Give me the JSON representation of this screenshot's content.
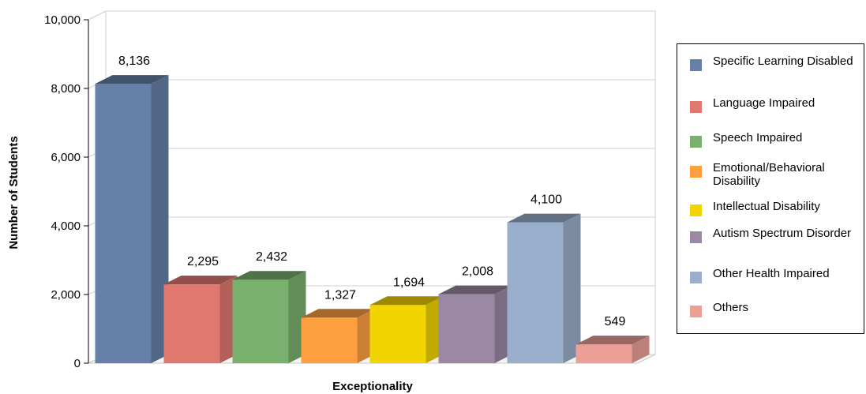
{
  "chart_data": {
    "type": "bar",
    "title": "",
    "xlabel": "Exceptionality",
    "ylabel": "Number of Students",
    "ylim": [
      0,
      10000
    ],
    "yticks": [
      "0",
      "2,000",
      "4,000",
      "6,000",
      "8,000",
      "10,000"
    ],
    "ytick_values": [
      0,
      2000,
      4000,
      6000,
      8000,
      10000
    ],
    "grid": true,
    "legend_position": "right",
    "categories": [
      "Specific Learning Disabled",
      "Language Impaired",
      "Speech Impaired",
      "Emotional/Behavioral Disability",
      "Intellectual Disability",
      "Autism Spectrum Disorder",
      "Other Health Impaired",
      "Others"
    ],
    "values": [
      8136,
      2295,
      2432,
      1327,
      1694,
      2008,
      4100,
      549
    ],
    "value_labels": [
      "8,136",
      "2,295",
      "2,432",
      "1,327",
      "1,694",
      "2,008",
      "4,100",
      "549"
    ],
    "colors": [
      "#6680a8",
      "#e07870",
      "#7ab06e",
      "#ffa040",
      "#f2d400",
      "#9b88a4",
      "#98aecb",
      "#eb9f97"
    ]
  }
}
